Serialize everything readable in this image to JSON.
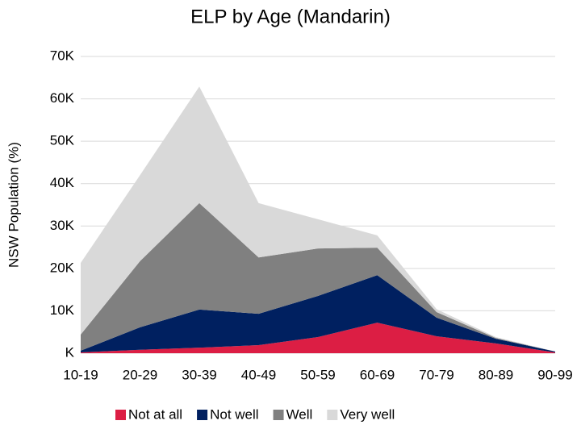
{
  "chart_data": {
    "type": "stacked_area",
    "title": "ELP by Age (Mandarin)",
    "y_label": "NSW Population (%)",
    "categories": [
      "10-19",
      "20-29",
      "30-39",
      "40-49",
      "50-59",
      "60-69",
      "70-79",
      "80-89",
      "90-99"
    ],
    "series": [
      {
        "name": "Not at all",
        "color": "#dc1e44",
        "values": [
          200,
          800,
          1300,
          1900,
          3800,
          7200,
          4000,
          2300,
          200
        ]
      },
      {
        "name": "Not well",
        "color": "#002060",
        "values": [
          400,
          5300,
          9000,
          7400,
          9700,
          11200,
          4400,
          1100,
          200
        ]
      },
      {
        "name": "Well",
        "color": "#808080",
        "values": [
          3800,
          15600,
          25100,
          13300,
          11200,
          6500,
          1300,
          200,
          0
        ]
      },
      {
        "name": "Very well",
        "color": "#d9d9d9",
        "values": [
          16900,
          20300,
          27500,
          12800,
          6900,
          2900,
          700,
          200,
          0
        ]
      }
    ],
    "ylim": [
      0,
      70000
    ],
    "yticks": [
      {
        "value": 0,
        "label": "K"
      },
      {
        "value": 10000,
        "label": "10K"
      },
      {
        "value": 20000,
        "label": "20K"
      },
      {
        "value": 30000,
        "label": "30K"
      },
      {
        "value": 40000,
        "label": "40K"
      },
      {
        "value": 50000,
        "label": "50K"
      },
      {
        "value": 60000,
        "label": "60K"
      },
      {
        "value": 70000,
        "label": "70K"
      }
    ],
    "grid": true,
    "legend": "bottom"
  }
}
